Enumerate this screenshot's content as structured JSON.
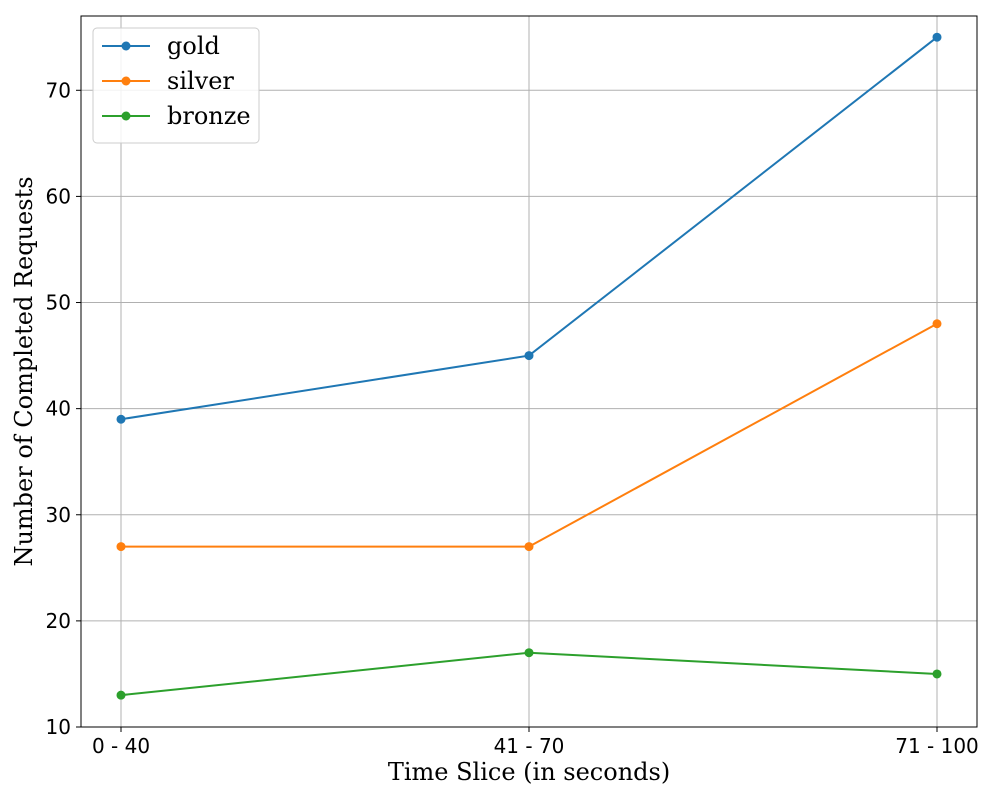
{
  "chart_data": {
    "type": "line",
    "title": "",
    "xlabel": "Time Slice (in seconds)",
    "ylabel": "Number of Completed Requests",
    "categories": [
      "0 - 40",
      "41 - 70",
      "71 - 100"
    ],
    "ylim": [
      10,
      77
    ],
    "yticks": [
      10,
      20,
      30,
      40,
      50,
      60,
      70
    ],
    "grid": true,
    "legend_position": "top-left",
    "series": [
      {
        "name": "gold",
        "color": "#1f77b4",
        "values": [
          39,
          45,
          75
        ]
      },
      {
        "name": "silver",
        "color": "#ff7f0e",
        "values": [
          27,
          27,
          48
        ]
      },
      {
        "name": "bronze",
        "color": "#2ca02c",
        "values": [
          13,
          17,
          15
        ]
      }
    ]
  }
}
